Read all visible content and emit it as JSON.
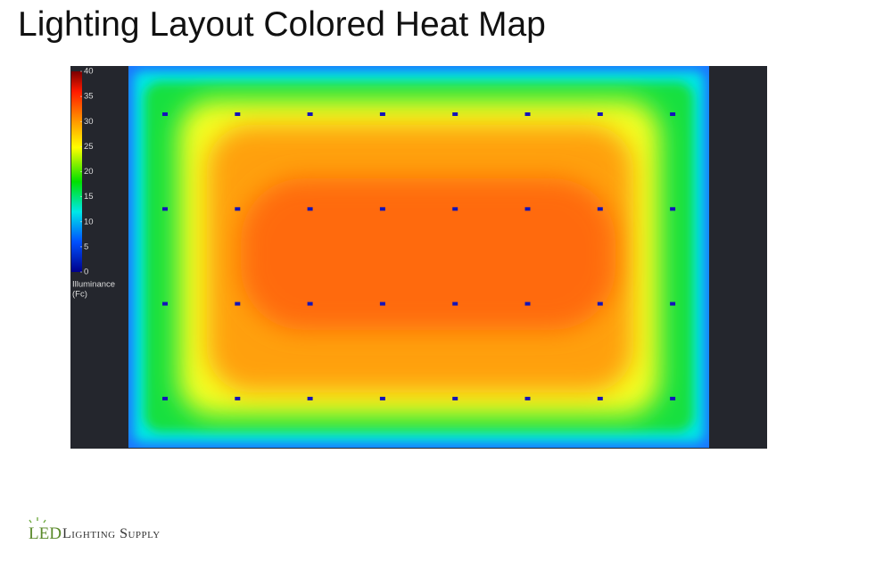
{
  "header": {
    "title": "Lighting Layout Colored Heat Map"
  },
  "colorbar": {
    "range": [
      0,
      40
    ],
    "ticks": [
      0,
      5,
      10,
      15,
      20,
      25,
      30,
      35,
      40
    ],
    "label_lines": [
      "Illuminance",
      "(Fc)"
    ]
  },
  "logo": {
    "mark": "LED",
    "name": "Lighting Supply"
  }
}
